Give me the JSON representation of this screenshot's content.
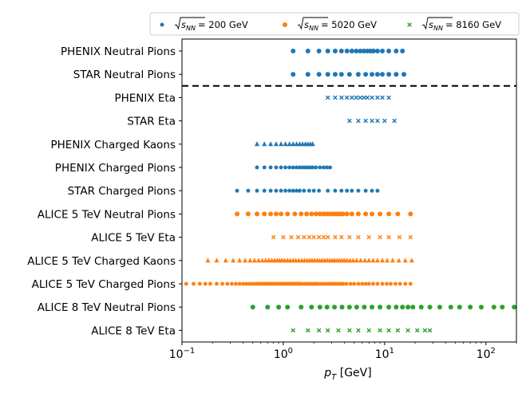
{
  "chart_data": {
    "type": "scatter",
    "title": "",
    "xlabel": "p_T [GeV]",
    "ylabel": "",
    "xscale": "log",
    "xlim": [
      0.1,
      200
    ],
    "x_ticks": [
      {
        "value": 0.1,
        "base": "10",
        "exp": "−1"
      },
      {
        "value": 1,
        "base": "10",
        "exp": "0"
      },
      {
        "value": 10,
        "base": "10",
        "exp": "1"
      },
      {
        "value": 100,
        "base": "10",
        "exp": "2"
      }
    ],
    "categories": [
      "PHENIX Neutral Pions",
      "STAR Neutral Pions",
      "PHENIX Eta",
      "STAR Eta",
      "PHENIX Charged Kaons",
      "PHENIX Charged Pions",
      "STAR Charged Pions",
      "ALICE 5 TeV Neutral Pions",
      "ALICE 5 TeV Eta",
      "ALICE 5 TeV Charged Kaons",
      "ALICE 5 TeV Charged Pions",
      "ALICE 8 TeV Neutral Pions",
      "ALICE 8 TeV Eta"
    ],
    "separator_after": "STAR Neutral Pions",
    "legend": [
      {
        "label": "√s_NN = 200 GeV",
        "sqrt_text": "s",
        "sub": "NN",
        "value_text": "= 200 GeV",
        "color": "#1f77b4",
        "marker": "pentagon"
      },
      {
        "label": "√s_NN = 5020 GeV",
        "sqrt_text": "s",
        "sub": "NN",
        "value_text": "= 5020 GeV",
        "color": "#ff7f0e",
        "marker": "circle"
      },
      {
        "label": "√s_NN = 8160 GeV",
        "sqrt_text": "s",
        "sub": "NN",
        "value_text": "= 8160 GeV",
        "color": "#2ca02c",
        "marker": "x"
      }
    ],
    "legend_position": "top-right",
    "series": [
      {
        "name": "PHENIX Neutral Pions",
        "energy": "200 GeV",
        "color": "#1f77b4",
        "marker": "circle",
        "x": [
          1.25,
          1.75,
          2.25,
          2.75,
          3.25,
          3.75,
          4.25,
          4.75,
          5.25,
          5.75,
          6.25,
          6.75,
          7.25,
          7.75,
          8.5,
          9.5,
          11.0,
          13.0,
          15.0
        ]
      },
      {
        "name": "STAR Neutral Pions",
        "energy": "200 GeV",
        "color": "#1f77b4",
        "marker": "circle",
        "x": [
          1.25,
          1.75,
          2.25,
          2.75,
          3.25,
          3.75,
          4.5,
          5.5,
          6.5,
          7.5,
          8.5,
          9.5,
          11.0,
          13.0,
          15.5
        ]
      },
      {
        "name": "PHENIX Eta",
        "energy": "200 GeV",
        "color": "#1f77b4",
        "marker": "x",
        "x": [
          2.75,
          3.25,
          3.75,
          4.25,
          4.75,
          5.25,
          5.75,
          6.25,
          6.75,
          7.5,
          8.5,
          9.5,
          11.0
        ]
      },
      {
        "name": "STAR Eta",
        "energy": "200 GeV",
        "color": "#1f77b4",
        "marker": "x",
        "x": [
          4.5,
          5.5,
          6.5,
          7.5,
          8.5,
          10.0,
          12.5
        ]
      },
      {
        "name": "PHENIX Charged Kaons",
        "energy": "200 GeV",
        "color": "#1f77b4",
        "marker": "triangle",
        "x": [
          0.55,
          0.65,
          0.75,
          0.85,
          0.95,
          1.05,
          1.15,
          1.25,
          1.35,
          1.45,
          1.55,
          1.65,
          1.75,
          1.85,
          1.95
        ]
      },
      {
        "name": "PHENIX Charged Pions",
        "energy": "200 GeV",
        "color": "#1f77b4",
        "marker": "pentagon",
        "x": [
          0.55,
          0.65,
          0.75,
          0.85,
          0.95,
          1.05,
          1.15,
          1.25,
          1.35,
          1.45,
          1.55,
          1.65,
          1.75,
          1.85,
          1.95,
          2.1,
          2.3,
          2.5,
          2.7,
          2.9
        ]
      },
      {
        "name": "STAR Charged Pions",
        "energy": "200 GeV",
        "color": "#1f77b4",
        "marker": "pentagon",
        "x": [
          0.35,
          0.45,
          0.55,
          0.65,
          0.75,
          0.85,
          0.95,
          1.05,
          1.15,
          1.25,
          1.35,
          1.45,
          1.6,
          1.8,
          2.0,
          2.25,
          2.75,
          3.25,
          3.75,
          4.25,
          4.75,
          5.5,
          6.5,
          7.5,
          8.5
        ]
      },
      {
        "name": "ALICE 5 TeV Neutral Pions",
        "energy": "5020 GeV",
        "color": "#ff7f0e",
        "marker": "circle",
        "x": [
          0.35,
          0.45,
          0.55,
          0.65,
          0.75,
          0.85,
          0.95,
          1.1,
          1.3,
          1.5,
          1.7,
          1.9,
          2.1,
          2.3,
          2.5,
          2.7,
          2.9,
          3.1,
          3.3,
          3.5,
          3.7,
          3.9,
          4.25,
          4.75,
          5.5,
          6.5,
          7.5,
          9.0,
          11.0,
          13.5,
          18.0
        ]
      },
      {
        "name": "ALICE 5 TeV Eta",
        "energy": "5020 GeV",
        "color": "#ff7f0e",
        "marker": "x",
        "x": [
          0.8,
          1.0,
          1.2,
          1.4,
          1.6,
          1.8,
          2.0,
          2.25,
          2.5,
          2.75,
          3.25,
          3.75,
          4.5,
          5.5,
          7.0,
          9.0,
          11.0,
          14.0,
          18.0
        ]
      },
      {
        "name": "ALICE 5 TeV Charged Kaons",
        "energy": "5020 GeV",
        "color": "#ff7f0e",
        "marker": "triangle",
        "x": [
          0.18,
          0.22,
          0.27,
          0.32,
          0.37,
          0.42,
          0.47,
          0.52,
          0.57,
          0.62,
          0.67,
          0.72,
          0.77,
          0.82,
          0.87,
          0.92,
          0.97,
          1.03,
          1.1,
          1.17,
          1.25,
          1.33,
          1.42,
          1.52,
          1.62,
          1.72,
          1.82,
          1.92,
          2.03,
          2.15,
          2.28,
          2.42,
          2.57,
          2.72,
          2.88,
          3.05,
          3.22,
          3.4,
          3.6,
          3.8,
          4.0,
          4.25,
          4.55,
          4.9,
          5.3,
          5.8,
          6.4,
          7.0,
          7.7,
          8.5,
          9.5,
          10.6,
          12.0,
          13.8,
          16.0,
          18.5
        ]
      },
      {
        "name": "ALICE 5 TeV Charged Pions",
        "energy": "5020 GeV",
        "color": "#ff7f0e",
        "marker": "pentagon",
        "x": [
          0.11,
          0.13,
          0.15,
          0.17,
          0.19,
          0.22,
          0.25,
          0.28,
          0.31,
          0.34,
          0.37,
          0.4,
          0.43,
          0.46,
          0.49,
          0.52,
          0.55,
          0.58,
          0.61,
          0.64,
          0.67,
          0.7,
          0.73,
          0.76,
          0.8,
          0.84,
          0.88,
          0.92,
          0.96,
          1.0,
          1.05,
          1.1,
          1.15,
          1.2,
          1.25,
          1.3,
          1.35,
          1.4,
          1.45,
          1.5,
          1.6,
          1.7,
          1.8,
          1.9,
          2.0,
          2.1,
          2.2,
          2.35,
          2.5,
          2.65,
          2.8,
          2.95,
          3.1,
          3.3,
          3.5,
          3.7,
          3.9,
          4.2,
          4.6,
          5.0,
          5.5,
          6.0,
          6.5,
          7.0,
          7.7,
          8.5,
          9.5,
          10.5,
          11.5,
          12.8,
          14.2,
          16.0,
          18.0
        ]
      },
      {
        "name": "ALICE 8 TeV Neutral Pions",
        "energy": "8160 GeV",
        "color": "#2ca02c",
        "marker": "circle",
        "x": [
          0.5,
          0.7,
          0.9,
          1.1,
          1.5,
          1.9,
          2.3,
          2.7,
          3.2,
          3.8,
          4.5,
          5.3,
          6.3,
          7.5,
          9.0,
          11.0,
          13.0,
          15.0,
          17.0,
          19.0,
          23.0,
          28.0,
          35.0,
          45.0,
          55.0,
          70.0,
          90.0,
          120.0,
          145.0,
          190.0
        ]
      },
      {
        "name": "ALICE 8 TeV Eta",
        "energy": "8160 GeV",
        "color": "#2ca02c",
        "marker": "x",
        "x": [
          1.25,
          1.75,
          2.25,
          2.75,
          3.5,
          4.5,
          5.5,
          7.0,
          9.0,
          11.0,
          13.5,
          17.0,
          21.0,
          25.0,
          28.0
        ]
      }
    ]
  }
}
